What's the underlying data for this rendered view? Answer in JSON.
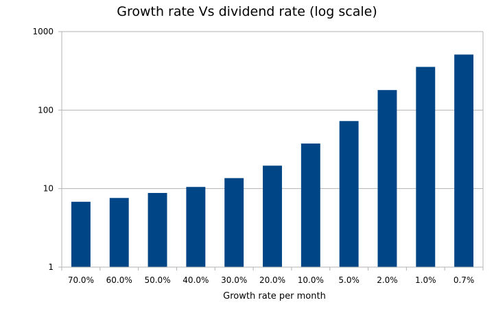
{
  "chart_data": {
    "type": "bar",
    "title": "Growth rate Vs dividend rate (log scale)",
    "xlabel": "Growth rate per month",
    "ylabel": "",
    "yscale": "log",
    "ylim": [
      1,
      1000
    ],
    "yticks": [
      "1",
      "10",
      "100",
      "1000"
    ],
    "grid": true,
    "legend": "none",
    "bar_color": "#004586",
    "categories": [
      "70.0%",
      "60.0%",
      "50.0%",
      "40.0%",
      "30.0%",
      "20.0%",
      "10.0%",
      "5.0%",
      "2.0%",
      "1.0%",
      "0.7%"
    ],
    "values": [
      6.8,
      7.6,
      8.8,
      10.5,
      13.6,
      19.6,
      37.5,
      72.5,
      180,
      355,
      510
    ]
  }
}
